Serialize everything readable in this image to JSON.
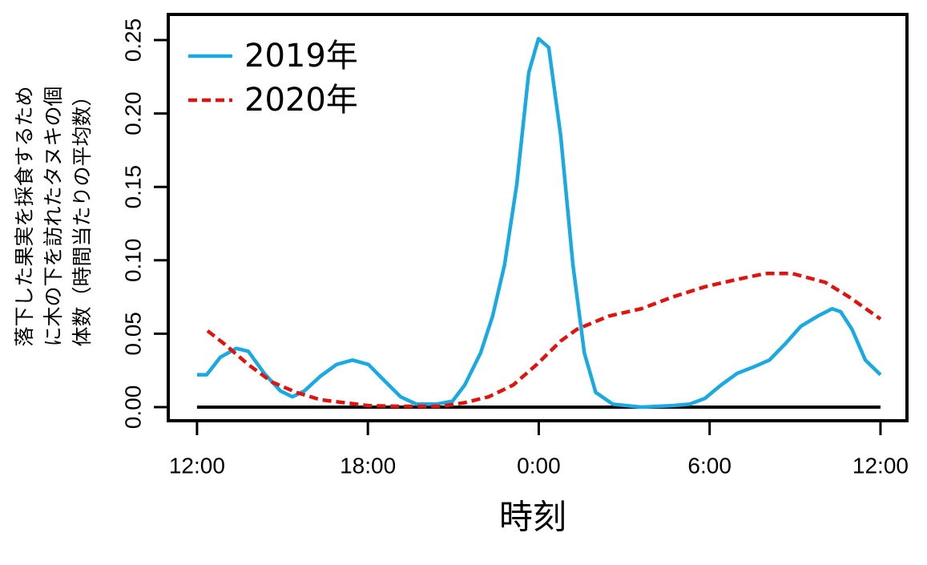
{
  "chart_data": {
    "type": "line",
    "y_label_lines": [
      "落下した果実を採食するため",
      "に木の下を訪れたタヌキの個",
      "体数（時間当たりの平均数）"
    ],
    "x_label": "時刻",
    "xlim": [
      -1.01,
      24.93
    ],
    "xticks": [
      {
        "value": 0,
        "label": "12:00"
      },
      {
        "value": 6,
        "label": "18:00"
      },
      {
        "value": 12,
        "label": "0:00"
      },
      {
        "value": 18,
        "label": "6:00"
      },
      {
        "value": 24,
        "label": "12:00"
      }
    ],
    "ylim": [
      -0.0093,
      0.2675
    ],
    "yticks": [
      {
        "value": 0,
        "label": "0.00"
      },
      {
        "value": 0.05,
        "label": "0.05"
      },
      {
        "value": 0.1,
        "label": "0.10"
      },
      {
        "value": 0.15,
        "label": "0.15"
      },
      {
        "value": 0.2,
        "label": "0.20"
      },
      {
        "value": 0.25,
        "label": "0.25"
      }
    ],
    "hline": 0,
    "legend": "top-left",
    "series": [
      {
        "name": "2019年",
        "color": "#1aa9e0",
        "dash": "solid",
        "x": [
          0,
          0.34,
          0.82,
          1.38,
          1.8,
          2.36,
          2.93,
          3.35,
          3.77,
          4.33,
          4.9,
          5.46,
          6.02,
          6.58,
          7.15,
          7.7,
          8.4,
          8.97,
          9.4,
          9.96,
          10.38,
          10.8,
          11.23,
          11.65,
          11.99,
          12.35,
          12.77,
          13.2,
          13.6,
          14.0,
          14.6,
          15.6,
          16.7,
          17.3,
          17.84,
          18.4,
          18.97,
          19.5,
          20.1,
          20.65,
          21.2,
          21.8,
          22.3,
          22.6,
          23.0,
          23.47,
          24
        ],
        "values": [
          0.022,
          0.022,
          0.034,
          0.04,
          0.038,
          0.023,
          0.011,
          0.007,
          0.011,
          0.021,
          0.029,
          0.032,
          0.029,
          0.018,
          0.007,
          0.002,
          0.002,
          0.004,
          0.015,
          0.037,
          0.062,
          0.097,
          0.152,
          0.228,
          0.251,
          0.245,
          0.185,
          0.097,
          0.037,
          0.01,
          0.002,
          0,
          0.001,
          0.002,
          0.006,
          0.015,
          0.023,
          0.027,
          0.032,
          0.043,
          0.055,
          0.062,
          0.067,
          0.065,
          0.053,
          0.032,
          0.022
        ]
      },
      {
        "name": "2020年",
        "color": "#e0140f",
        "dash": "dashed",
        "x": [
          0.37,
          0.96,
          1.8,
          2.64,
          3.49,
          4.33,
          5.18,
          6.02,
          7.15,
          8.55,
          9.4,
          10.24,
          11.1,
          11.93,
          12.77,
          13.34,
          14.46,
          15.6,
          16.7,
          17.84,
          18.97,
          19.96,
          20.9,
          22.06,
          22.9,
          24
        ],
        "values": [
          0.052,
          0.043,
          0.029,
          0.017,
          0.01,
          0.005,
          0.003,
          0.001,
          0.0005,
          0.0005,
          0.003,
          0.007,
          0.015,
          0.029,
          0.045,
          0.053,
          0.062,
          0.067,
          0.075,
          0.082,
          0.087,
          0.091,
          0.091,
          0.085,
          0.075,
          0.06
        ]
      }
    ]
  }
}
